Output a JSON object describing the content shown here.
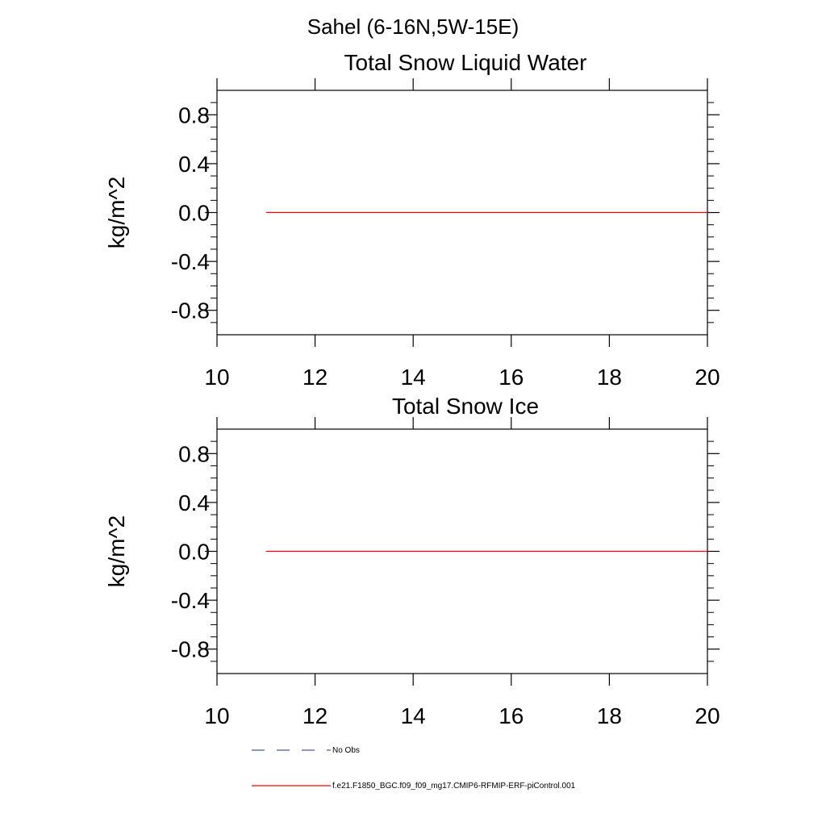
{
  "figure_title": "Sahel (6-16N,5W-15E)",
  "chart_data": [
    {
      "type": "line",
      "title": "Total Snow Liquid Water",
      "xlabel": "",
      "ylabel": "kg/m^2",
      "xlim": [
        10,
        20
      ],
      "ylim": [
        -1.0,
        1.0
      ],
      "x_ticks": [
        "10",
        "12",
        "14",
        "16",
        "18",
        "20"
      ],
      "y_ticks": [
        "0.8",
        "0.4",
        "0.0",
        "-0.4",
        "-0.8"
      ],
      "grid": false,
      "series": [
        {
          "name": "f.e21.F1850_BGC.f09_f09_mg17.CMIP6-RFMIP-ERF-piControl.001",
          "color": "#ff0000",
          "dash": "solid",
          "x": [
            11,
            20
          ],
          "y": [
            0.0,
            0.0
          ]
        }
      ]
    },
    {
      "type": "line",
      "title": "Total Snow Ice",
      "xlabel": "",
      "ylabel": "kg/m^2",
      "xlim": [
        10,
        20
      ],
      "ylim": [
        -1.0,
        1.0
      ],
      "x_ticks": [
        "10",
        "12",
        "14",
        "16",
        "18",
        "20"
      ],
      "y_ticks": [
        "0.8",
        "0.4",
        "0.0",
        "-0.4",
        "-0.8"
      ],
      "grid": false,
      "series": [
        {
          "name": "f.e21.F1850_BGC.f09_f09_mg17.CMIP6-RFMIP-ERF-piControl.001",
          "color": "#ff0000",
          "dash": "solid",
          "x": [
            11,
            20
          ],
          "y": [
            0.0,
            0.0
          ]
        }
      ]
    }
  ],
  "legend": {
    "placement": "bottom",
    "entries": [
      {
        "label": "No Obs",
        "color": "#4a5a8c",
        "dash": "dashed"
      },
      {
        "label": "f.e21.F1850_BGC.f09_f09_mg17.CMIP6-RFMIP-ERF-piControl.001",
        "color": "#ff0000",
        "dash": "solid"
      }
    ]
  }
}
